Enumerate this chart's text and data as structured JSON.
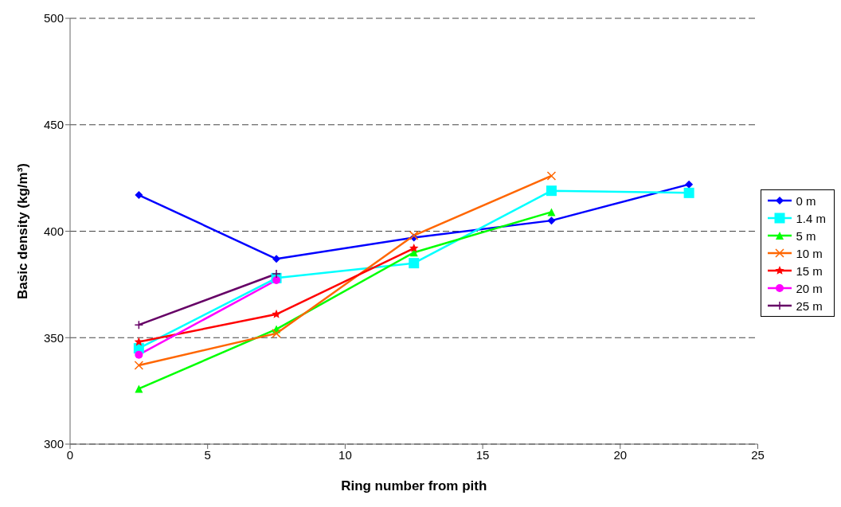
{
  "chart_data": {
    "type": "line",
    "xlabel": "Ring number from pith",
    "ylabel": "Basic density (kg/m³)",
    "xlim": [
      0,
      25
    ],
    "xticks": [
      0,
      5,
      10,
      15,
      20,
      25
    ],
    "ylim": [
      300,
      500
    ],
    "yticks": [
      300,
      350,
      400,
      450,
      500
    ],
    "grid": "y",
    "legend": "right",
    "line_style": "solid",
    "series": [
      {
        "name": "0 m",
        "color": "#0000ff",
        "marker": "diamond",
        "x": [
          2.5,
          7.5,
          12.5,
          17.5,
          22.5
        ],
        "values": [
          417,
          387,
          397,
          405,
          422
        ]
      },
      {
        "name": "1.4 m",
        "color": "#00ffff",
        "marker": "square",
        "x": [
          2.5,
          7.5,
          12.5,
          17.5,
          22.5
        ],
        "values": [
          345,
          378,
          385,
          419,
          418
        ]
      },
      {
        "name": "5 m",
        "color": "#00ff00",
        "marker": "triangle",
        "x": [
          2.5,
          7.5,
          12.5,
          17.5
        ],
        "values": [
          326,
          354,
          390,
          409
        ]
      },
      {
        "name": "10 m",
        "color": "#ff6600",
        "marker": "cross",
        "x": [
          2.5,
          7.5,
          12.5,
          17.5
        ],
        "values": [
          337,
          352,
          398,
          426
        ]
      },
      {
        "name": "15 m",
        "color": "#ff0000",
        "marker": "star",
        "x": [
          2.5,
          7.5,
          12.5
        ],
        "values": [
          348,
          361,
          392
        ]
      },
      {
        "name": "20 m",
        "color": "#ff00ff",
        "marker": "circle",
        "x": [
          2.5,
          7.5
        ],
        "values": [
          342,
          377
        ]
      },
      {
        "name": "25 m",
        "color": "#660066",
        "marker": "plus",
        "x": [
          2.5,
          7.5
        ],
        "values": [
          356,
          380
        ]
      }
    ]
  }
}
